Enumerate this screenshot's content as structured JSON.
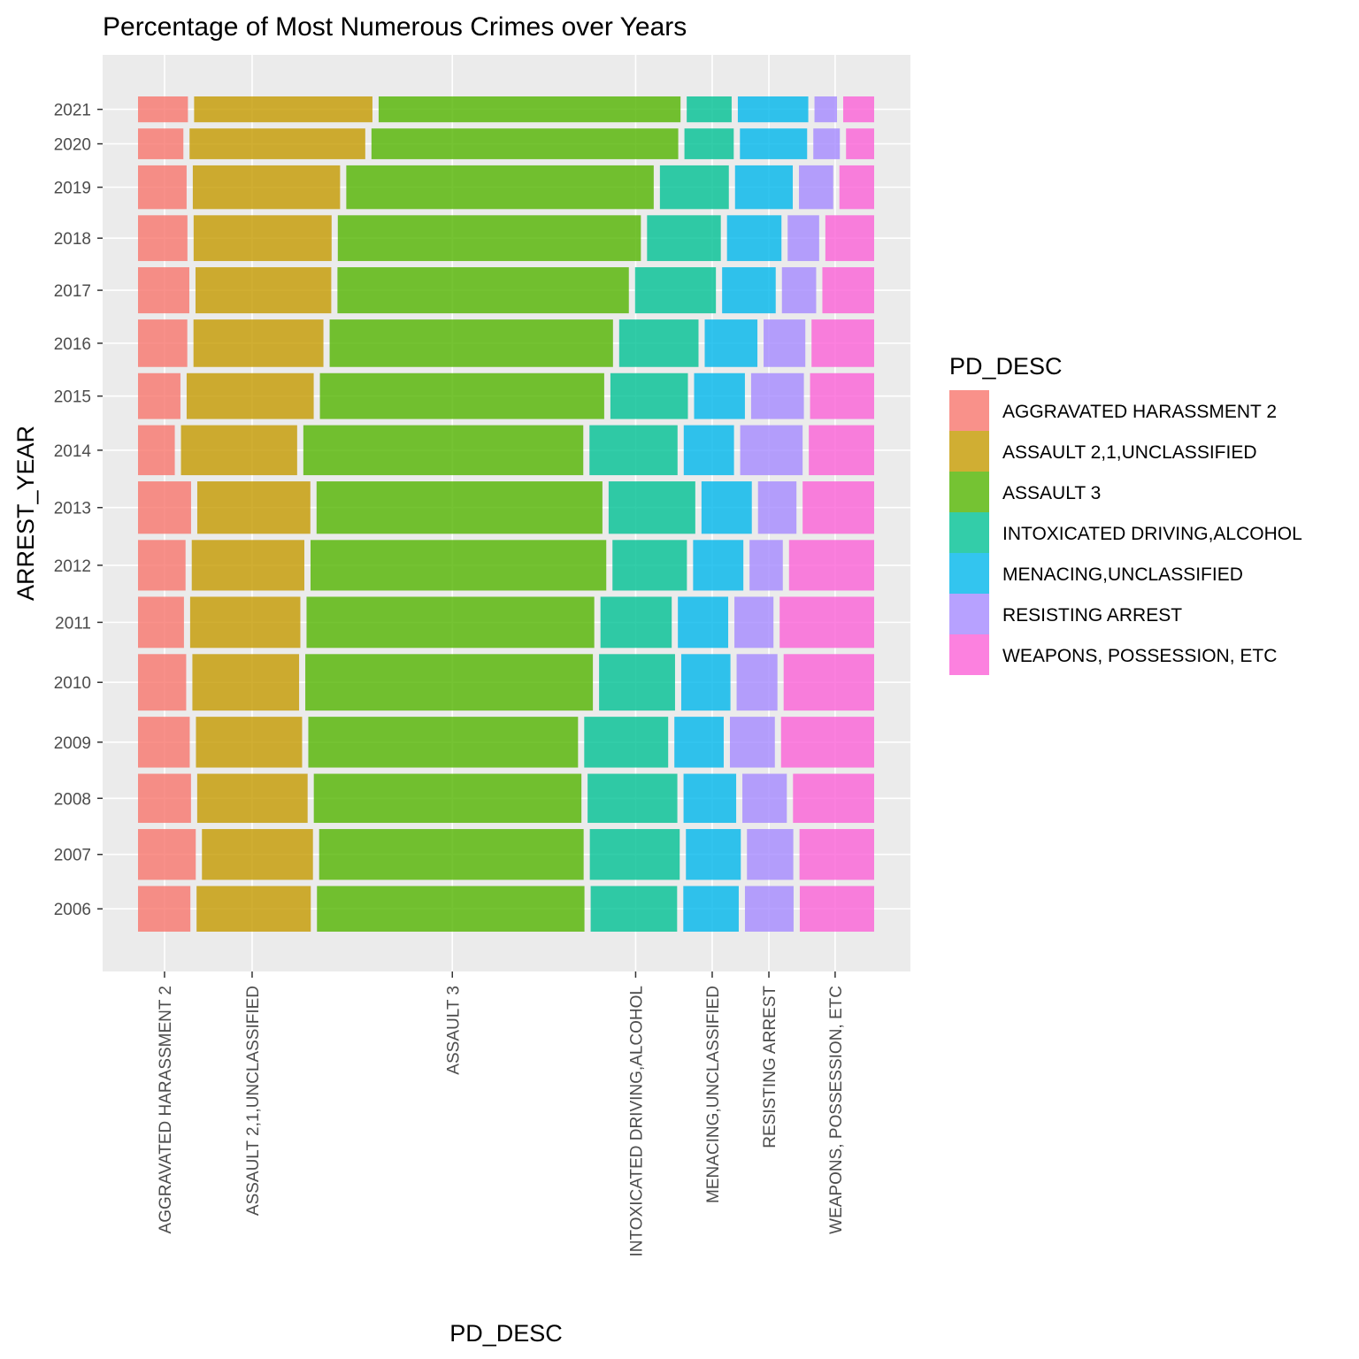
{
  "chart_data": {
    "type": "mosaic",
    "title": "Percentage of Most Numerous Crimes over Years",
    "xlabel": "PD_DESC",
    "ylabel": "ARREST_YEAR",
    "grid": true,
    "legend_position": "right",
    "legend_title": "PD_DESC",
    "categories": [
      "AGGRAVATED HARASSMENT 2",
      "ASSAULT 2,1,UNCLASSIFIED",
      "ASSAULT 3",
      "INTOXICATED DRIVING,ALCOHOL",
      "MENACING,UNCLASSIFIED",
      "RESISTING ARREST",
      "WEAPONS, POSSESSION, ETC"
    ],
    "colors": [
      "#F8766D",
      "#C49A00",
      "#53B400",
      "#00C094",
      "#00B6EB",
      "#A58AFF",
      "#FB61D7"
    ],
    "x_tick_positions": [
      0.036,
      0.155,
      0.427,
      0.676,
      0.78,
      0.857,
      0.947
    ],
    "years": [
      2006,
      2007,
      2008,
      2009,
      2010,
      2011,
      2012,
      2013,
      2014,
      2015,
      2016,
      2017,
      2018,
      2019,
      2020,
      2021
    ],
    "year_share": [
      0.0618,
      0.0688,
      0.0665,
      0.0688,
      0.0765,
      0.0693,
      0.0685,
      0.071,
      0.0677,
      0.0621,
      0.0643,
      0.0624,
      0.062,
      0.0592,
      0.0416,
      0.035
    ],
    "percentages": [
      [
        0.0749,
        0.1634,
        0.3827,
        0.1237,
        0.0793,
        0.0696,
        0.1064
      ],
      [
        0.0826,
        0.1588,
        0.3784,
        0.1286,
        0.0785,
        0.0663,
        0.1068
      ],
      [
        0.0758,
        0.158,
        0.3829,
        0.1284,
        0.0753,
        0.0636,
        0.1161
      ],
      [
        0.074,
        0.1519,
        0.3859,
        0.1201,
        0.0706,
        0.0643,
        0.1332
      ],
      [
        0.0689,
        0.1527,
        0.4115,
        0.1087,
        0.0704,
        0.0584,
        0.1295
      ],
      [
        0.0657,
        0.1577,
        0.4117,
        0.1019,
        0.072,
        0.0559,
        0.1352
      ],
      [
        0.068,
        0.1611,
        0.4231,
        0.1065,
        0.0719,
        0.0476,
        0.1218
      ],
      [
        0.0759,
        0.1618,
        0.409,
        0.124,
        0.072,
        0.055,
        0.1023
      ],
      [
        0.0526,
        0.1662,
        0.4005,
        0.126,
        0.0719,
        0.0893,
        0.0935
      ],
      [
        0.0607,
        0.1818,
        0.4068,
        0.1109,
        0.0727,
        0.0755,
        0.0917
      ],
      [
        0.0705,
        0.1859,
        0.4054,
        0.1135,
        0.0754,
        0.0597,
        0.0896
      ],
      [
        0.0734,
        0.1942,
        0.4169,
        0.1157,
        0.0767,
        0.049,
        0.0741
      ],
      [
        0.0707,
        0.1974,
        0.4336,
        0.1055,
        0.0779,
        0.0451,
        0.0698
      ],
      [
        0.0695,
        0.2107,
        0.4398,
        0.0986,
        0.0826,
        0.049,
        0.0497
      ],
      [
        0.0653,
        0.2531,
        0.4419,
        0.071,
        0.0968,
        0.0382,
        0.0405
      ],
      [
        0.0711,
        0.2541,
        0.4302,
        0.064,
        0.1004,
        0.0321,
        0.0441
      ]
    ]
  }
}
